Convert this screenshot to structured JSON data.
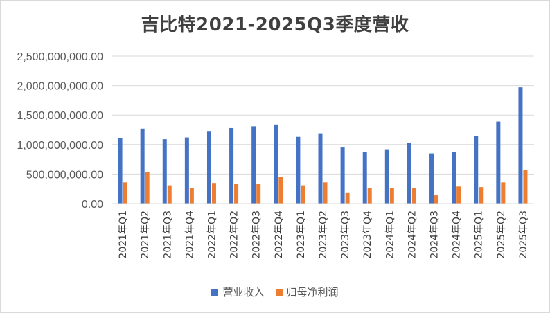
{
  "chart_data": {
    "type": "bar",
    "title": "吉比特2021-2025Q3季度营收",
    "xlabel": "",
    "ylabel": "",
    "ylim": [
      0,
      2500000000
    ],
    "yticks": [
      "0.00",
      "500,000,000.00",
      "1,000,000,000.00",
      "1,500,000,000.00",
      "2,000,000,000.00",
      "2,500,000,000.00"
    ],
    "grid": true,
    "legend_position": "bottom",
    "categories": [
      "2021年Q1",
      "2021年Q2",
      "2021年Q3",
      "2021年Q4",
      "2022年Q1",
      "2022年Q2",
      "2022年Q3",
      "2022年Q4",
      "2023年Q1",
      "2023年Q2",
      "2023年Q3",
      "2023年Q4",
      "2024年Q1",
      "2024年Q2",
      "2024年Q3",
      "2024年Q4",
      "2025年Q1",
      "2025年Q2",
      "2025年Q3"
    ],
    "series": [
      {
        "name": "营业收入",
        "color": "#4472c4",
        "values": [
          1110000000,
          1270000000,
          1090000000,
          1120000000,
          1230000000,
          1280000000,
          1310000000,
          1340000000,
          1130000000,
          1190000000,
          950000000,
          880000000,
          920000000,
          1030000000,
          850000000,
          880000000,
          1140000000,
          1390000000,
          1970000000
        ]
      },
      {
        "name": "归母净利润",
        "color": "#ed7d31",
        "values": [
          360000000,
          540000000,
          310000000,
          260000000,
          350000000,
          340000000,
          330000000,
          450000000,
          310000000,
          360000000,
          190000000,
          270000000,
          260000000,
          270000000,
          140000000,
          290000000,
          280000000,
          360000000,
          570000000
        ]
      }
    ]
  }
}
